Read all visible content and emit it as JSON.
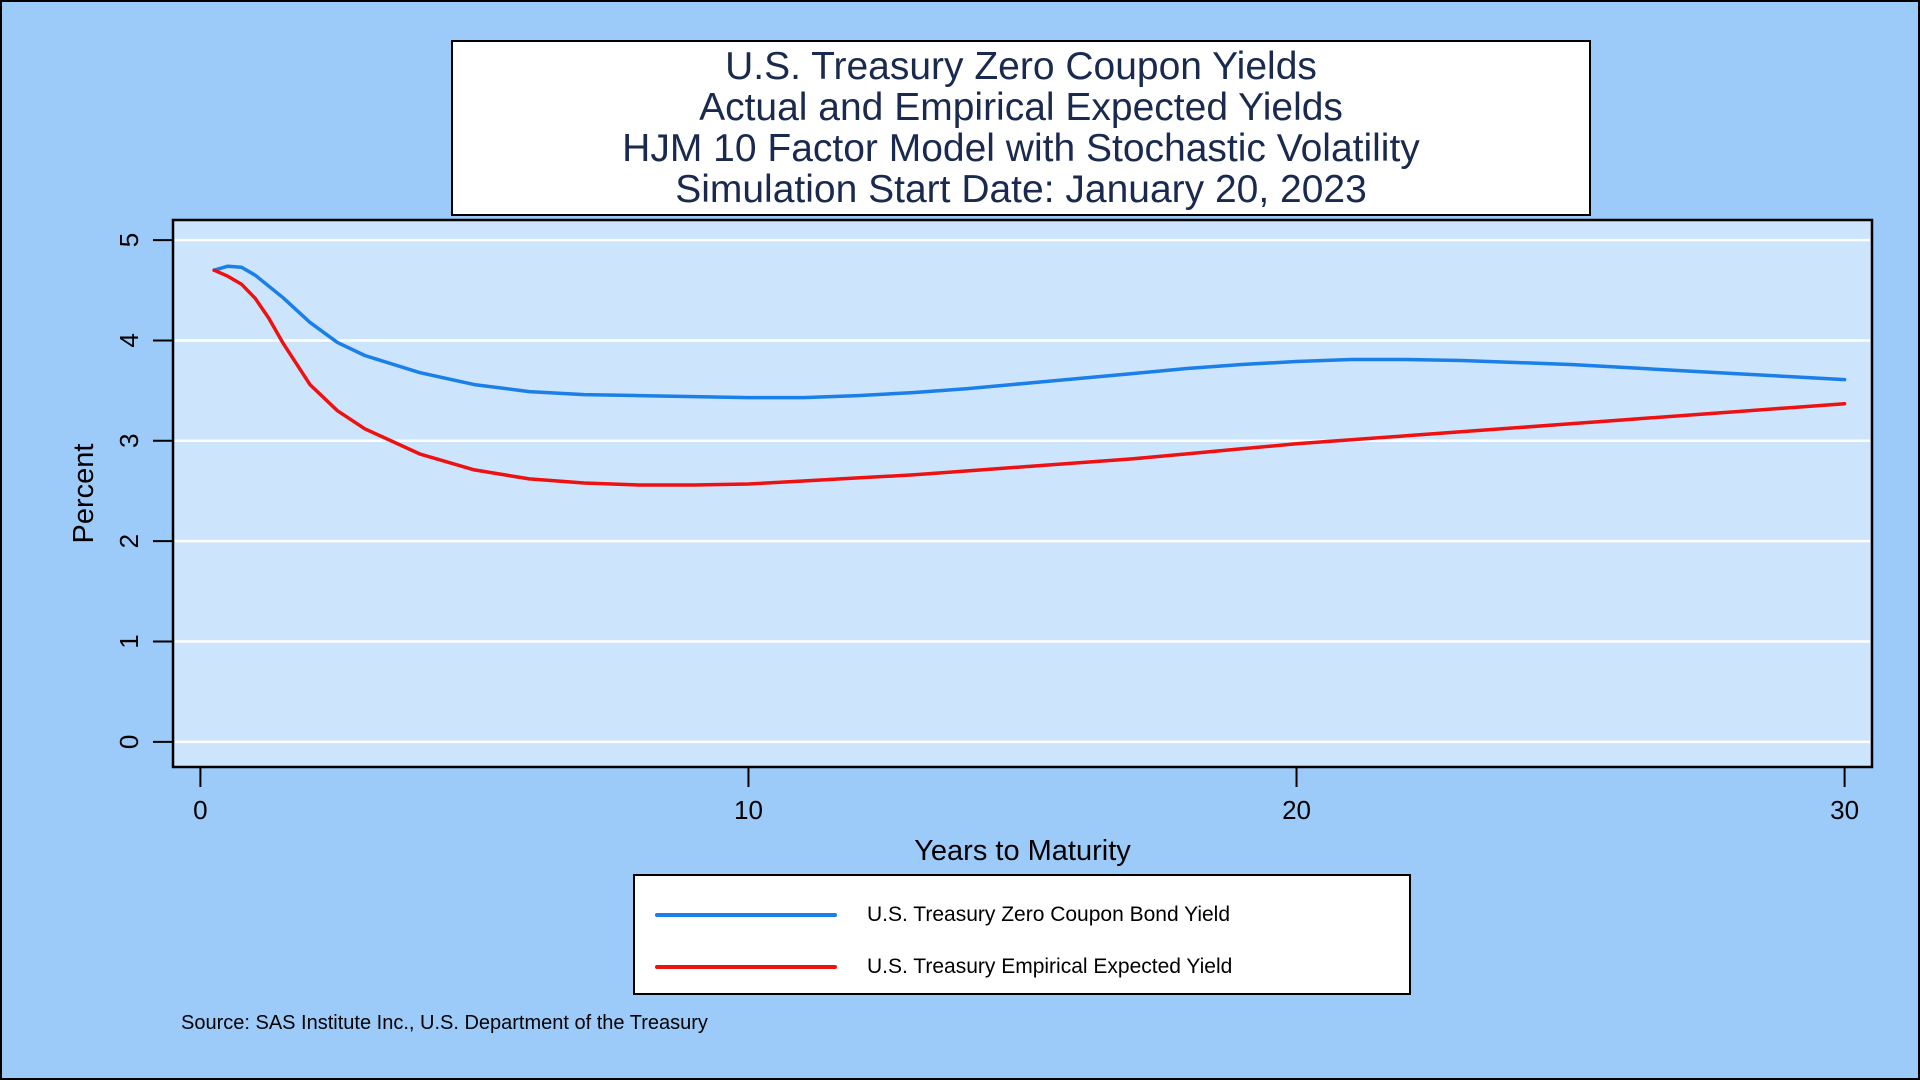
{
  "title_lines": [
    "U.S. Treasury Zero Coupon Yields",
    "Actual and Empirical Expected Yields",
    "HJM 10 Factor Model with Stochastic Volatility",
    "Simulation Start Date: January 20, 2023"
  ],
  "source": "Source: SAS Institute Inc., U.S. Department of the Treasury",
  "colors": {
    "background": "#9ccbfa",
    "plot_area": "#cce4fc",
    "gridline": "#ffffff",
    "title_text": "#1a2a4f"
  },
  "chart_data": {
    "type": "line",
    "xlabel": "Years to Maturity",
    "ylabel": "Percent",
    "xlim": [
      -0.5,
      30.5
    ],
    "ylim": [
      -0.25,
      5.2
    ],
    "xticks": [
      0,
      10,
      20,
      30
    ],
    "yticks": [
      0,
      1,
      2,
      3,
      4,
      5
    ],
    "grid": "horizontal",
    "legend_position": "bottom",
    "series": [
      {
        "name": "U.S. Treasury Zero Coupon Bond Yield",
        "color": "#1a7fe8",
        "x": [
          0.25,
          0.5,
          0.75,
          1,
          1.5,
          2,
          2.5,
          3,
          4,
          5,
          6,
          7,
          8,
          9,
          10,
          11,
          12,
          13,
          14,
          15,
          16,
          17,
          18,
          19,
          20,
          21,
          22,
          23,
          24,
          25,
          26,
          27,
          28,
          29,
          30
        ],
        "y": [
          4.7,
          4.74,
          4.73,
          4.65,
          4.43,
          4.18,
          3.98,
          3.85,
          3.68,
          3.56,
          3.49,
          3.46,
          3.45,
          3.44,
          3.43,
          3.43,
          3.45,
          3.48,
          3.52,
          3.57,
          3.62,
          3.67,
          3.72,
          3.76,
          3.79,
          3.81,
          3.81,
          3.8,
          3.78,
          3.76,
          3.73,
          3.7,
          3.67,
          3.64,
          3.61
        ]
      },
      {
        "name": "U.S. Treasury Empirical Expected Yield",
        "color": "#ee1111",
        "x": [
          0.25,
          0.5,
          0.75,
          1,
          1.25,
          1.5,
          2,
          2.5,
          3,
          4,
          5,
          6,
          7,
          8,
          9,
          10,
          11,
          12,
          13,
          14,
          15,
          16,
          17,
          18,
          19,
          20,
          21,
          22,
          23,
          24,
          25,
          26,
          27,
          28,
          29,
          30
        ],
        "y": [
          4.7,
          4.64,
          4.56,
          4.42,
          4.22,
          3.98,
          3.56,
          3.3,
          3.12,
          2.87,
          2.71,
          2.62,
          2.58,
          2.56,
          2.56,
          2.57,
          2.6,
          2.63,
          2.66,
          2.7,
          2.74,
          2.78,
          2.82,
          2.87,
          2.92,
          2.97,
          3.01,
          3.05,
          3.09,
          3.13,
          3.17,
          3.21,
          3.25,
          3.29,
          3.33,
          3.37
        ]
      }
    ]
  }
}
